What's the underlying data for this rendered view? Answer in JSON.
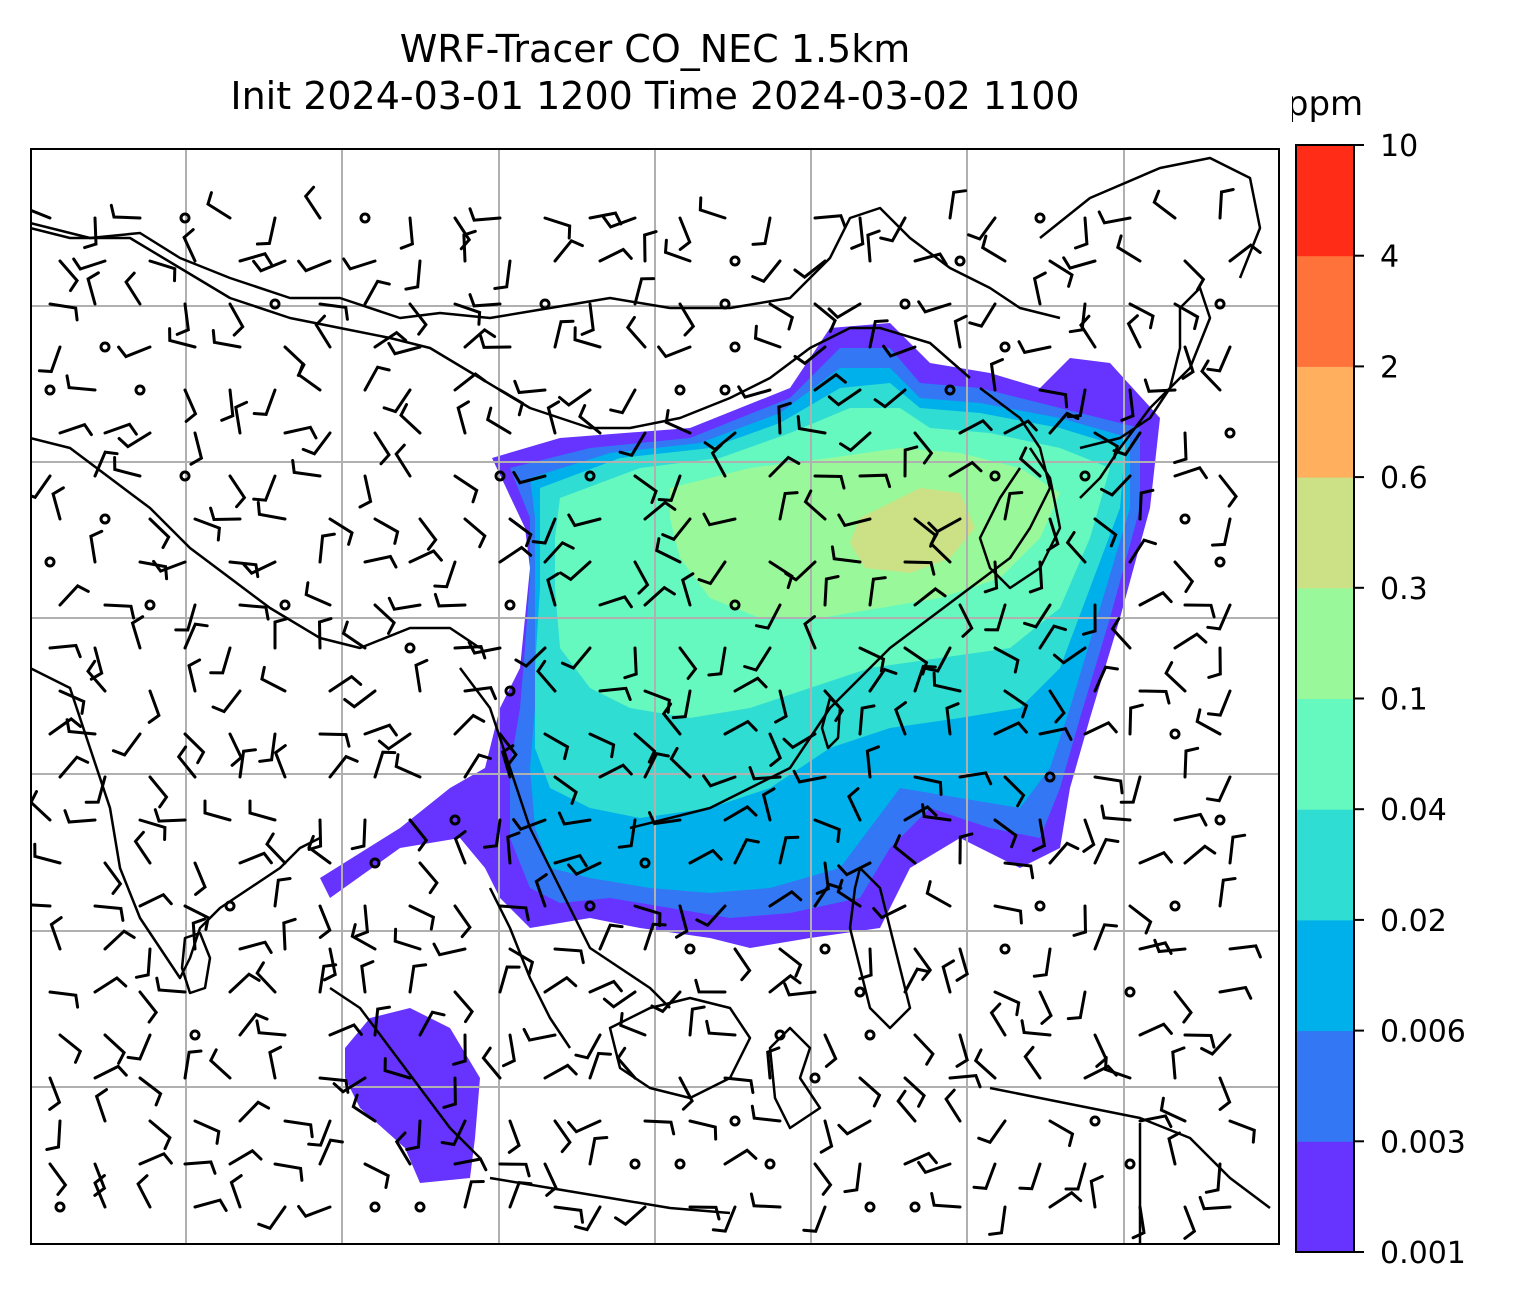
{
  "title": {
    "line1": "WRF-Tracer CO_NEC 1.5km",
    "line2": "Init 2024-03-01 1200 Time 2024-03-02 1100"
  },
  "colorbar": {
    "unit": "ppm",
    "levels": [
      "0.001",
      "0.003",
      "0.006",
      "0.02",
      "0.04",
      "0.1",
      "0.3",
      "0.6",
      "2",
      "4",
      "10"
    ],
    "colors": [
      "#6633ff",
      "#3377f5",
      "#00b0ea",
      "#2fddd2",
      "#66f9bf",
      "#99f99a",
      "#cce085",
      "#ffaf5d",
      "#ff733a",
      "#ff2c17"
    ]
  },
  "map": {
    "gridlines": true,
    "field_description_colors": {
      "background": "#ffffff",
      "coastline": "#000000",
      "grid": "#b0b0b0"
    },
    "wind_barbs": true
  }
}
